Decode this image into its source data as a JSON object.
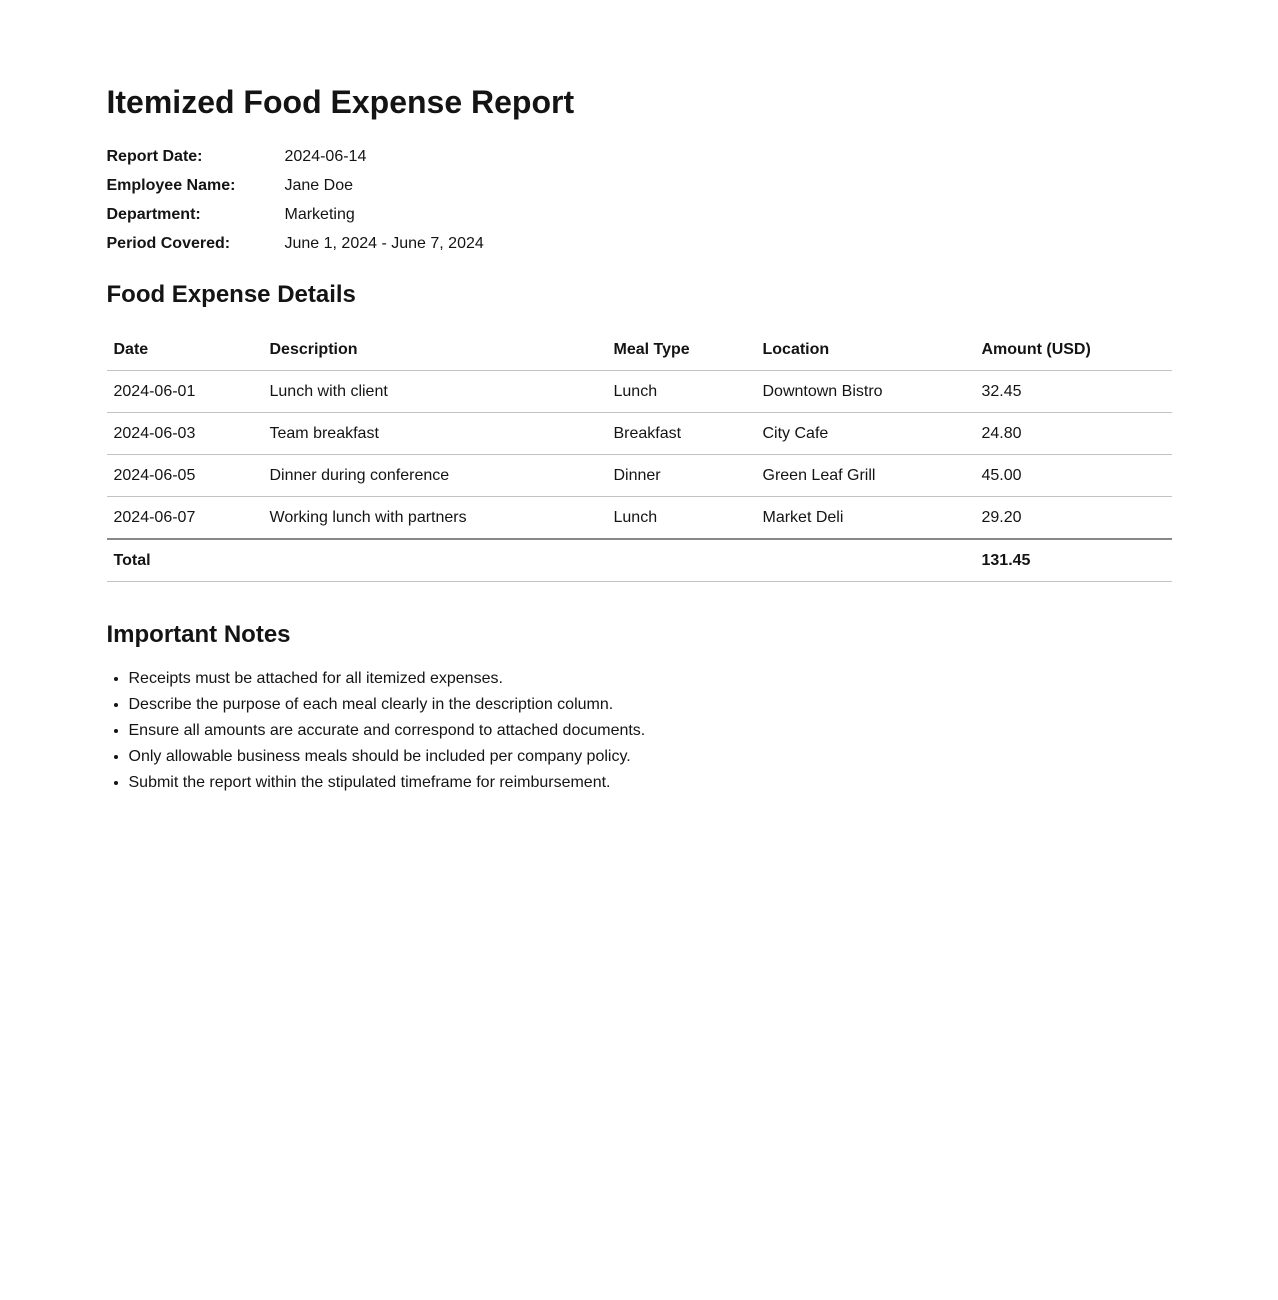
{
  "document": {
    "title": "Itemized Food Expense Report",
    "meta": {
      "rows": [
        {
          "label": "Report Date:",
          "value": "2024-06-14"
        },
        {
          "label": "Employee Name:",
          "value": "Jane Doe"
        },
        {
          "label": "Department:",
          "value": "Marketing"
        },
        {
          "label": "Period Covered:",
          "value": "June 1, 2024 - June 7, 2024"
        }
      ]
    },
    "expense_section": {
      "heading": "Food Expense Details",
      "table": {
        "columns": [
          "Date",
          "Description",
          "Meal Type",
          "Location",
          "Amount (USD)"
        ],
        "rows": [
          {
            "date": "2024-06-01",
            "description": "Lunch with client",
            "meal_type": "Lunch",
            "location": "Downtown Bistro",
            "amount": "32.45"
          },
          {
            "date": "2024-06-03",
            "description": "Team breakfast",
            "meal_type": "Breakfast",
            "location": "City Cafe",
            "amount": "24.80"
          },
          {
            "date": "2024-06-05",
            "description": "Dinner during conference",
            "meal_type": "Dinner",
            "location": "Green Leaf Grill",
            "amount": "45.00"
          },
          {
            "date": "2024-06-07",
            "description": "Working lunch with partners",
            "meal_type": "Lunch",
            "location": "Market Deli",
            "amount": "29.20"
          }
        ],
        "total_label": "Total",
        "total_value": "131.45"
      }
    },
    "notes_section": {
      "heading": "Important Notes",
      "items": [
        "Receipts must be attached for all itemized expenses.",
        "Describe the purpose of each meal clearly in the description column.",
        "Ensure all amounts are accurate and correspond to attached documents.",
        "Only allowable business meals should be included per company policy.",
        "Submit the report within the stipulated timeframe for reimbursement."
      ]
    },
    "colors": {
      "background": "#ffffff",
      "text": "#141414",
      "border_light": "#c3c3c3",
      "border_heavy": "#888888"
    }
  }
}
